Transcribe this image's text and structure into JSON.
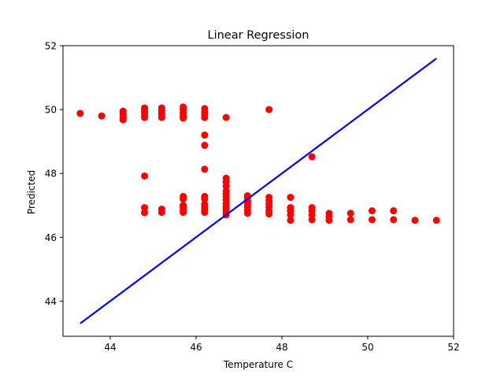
{
  "chart_data": {
    "type": "scatter",
    "title": "Linear Regression",
    "xlabel": "Temperature C",
    "ylabel": "Predicted",
    "xlim": [
      42.9,
      52.0
    ],
    "ylim": [
      42.9,
      52.0
    ],
    "xticks": [
      44,
      46,
      48,
      50,
      52
    ],
    "yticks": [
      44,
      46,
      48,
      50,
      52
    ],
    "grid": false,
    "series": [
      {
        "kind": "scatter",
        "color": "#ff0000",
        "points": [
          [
            43.3,
            49.88
          ],
          [
            43.8,
            49.8
          ],
          [
            44.3,
            49.95
          ],
          [
            44.3,
            49.85
          ],
          [
            44.3,
            49.75
          ],
          [
            44.3,
            49.68
          ],
          [
            44.8,
            50.05
          ],
          [
            44.8,
            49.98
          ],
          [
            44.8,
            49.9
          ],
          [
            44.8,
            49.83
          ],
          [
            44.8,
            49.75
          ],
          [
            44.8,
            47.92
          ],
          [
            44.8,
            46.93
          ],
          [
            44.8,
            46.77
          ],
          [
            45.2,
            50.05
          ],
          [
            45.2,
            49.98
          ],
          [
            45.2,
            49.9
          ],
          [
            45.2,
            49.83
          ],
          [
            45.2,
            49.75
          ],
          [
            45.2,
            46.88
          ],
          [
            45.2,
            46.78
          ],
          [
            45.7,
            50.08
          ],
          [
            45.7,
            50.0
          ],
          [
            45.7,
            49.9
          ],
          [
            45.7,
            49.8
          ],
          [
            45.7,
            49.73
          ],
          [
            45.7,
            47.28
          ],
          [
            45.7,
            47.2
          ],
          [
            45.7,
            47.0
          ],
          [
            45.7,
            46.93
          ],
          [
            45.7,
            46.85
          ],
          [
            45.7,
            46.78
          ],
          [
            46.2,
            50.03
          ],
          [
            46.2,
            49.93
          ],
          [
            46.2,
            49.85
          ],
          [
            46.2,
            49.75
          ],
          [
            46.2,
            49.2
          ],
          [
            46.2,
            48.88
          ],
          [
            46.2,
            48.13
          ],
          [
            46.2,
            47.28
          ],
          [
            46.2,
            47.2
          ],
          [
            46.2,
            47.03
          ],
          [
            46.2,
            46.93
          ],
          [
            46.2,
            46.85
          ],
          [
            46.2,
            46.78
          ],
          [
            46.7,
            49.75
          ],
          [
            46.7,
            47.85
          ],
          [
            46.7,
            47.73
          ],
          [
            46.7,
            47.6
          ],
          [
            46.7,
            47.45
          ],
          [
            46.7,
            47.35
          ],
          [
            46.7,
            47.28
          ],
          [
            46.7,
            47.18
          ],
          [
            46.7,
            47.05
          ],
          [
            46.7,
            46.95
          ],
          [
            46.7,
            46.88
          ],
          [
            46.7,
            46.78
          ],
          [
            46.7,
            46.7
          ],
          [
            47.2,
            47.3
          ],
          [
            47.2,
            47.23
          ],
          [
            47.2,
            47.13
          ],
          [
            47.2,
            47.05
          ],
          [
            47.2,
            46.95
          ],
          [
            47.2,
            46.85
          ],
          [
            47.2,
            46.75
          ],
          [
            47.7,
            50.0
          ],
          [
            47.7,
            47.25
          ],
          [
            47.7,
            47.15
          ],
          [
            47.7,
            47.05
          ],
          [
            47.7,
            46.95
          ],
          [
            47.7,
            46.83
          ],
          [
            47.7,
            46.73
          ],
          [
            48.2,
            47.25
          ],
          [
            48.2,
            46.93
          ],
          [
            48.2,
            46.83
          ],
          [
            48.2,
            46.7
          ],
          [
            48.2,
            46.53
          ],
          [
            48.7,
            48.52
          ],
          [
            48.7,
            46.93
          ],
          [
            48.7,
            46.83
          ],
          [
            48.7,
            46.7
          ],
          [
            48.7,
            46.55
          ],
          [
            49.1,
            46.75
          ],
          [
            49.1,
            46.65
          ],
          [
            49.1,
            46.53
          ],
          [
            49.6,
            46.75
          ],
          [
            49.6,
            46.55
          ],
          [
            50.1,
            46.83
          ],
          [
            50.1,
            46.55
          ],
          [
            50.6,
            46.83
          ],
          [
            50.6,
            46.55
          ],
          [
            51.1,
            46.53
          ],
          [
            51.6,
            46.53
          ]
        ]
      },
      {
        "kind": "line",
        "color": "#0000ff",
        "points": [
          [
            43.3,
            43.3
          ],
          [
            51.6,
            51.6
          ]
        ]
      }
    ]
  }
}
